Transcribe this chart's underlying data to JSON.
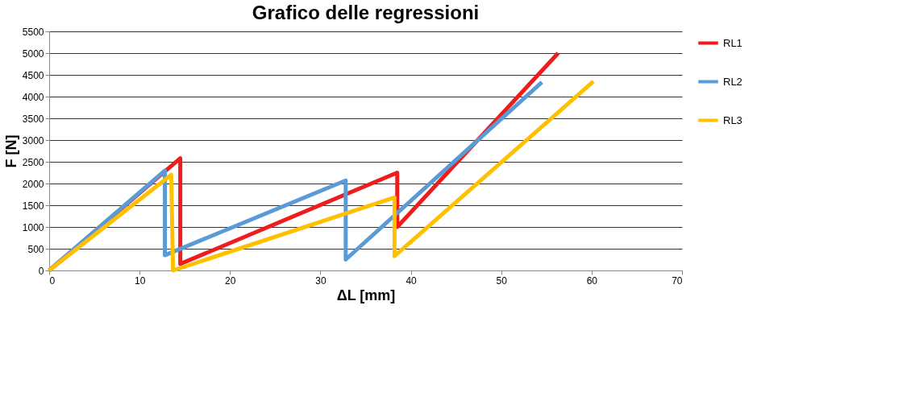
{
  "chart_data": {
    "type": "line",
    "title": "Grafico delle regressioni",
    "xlabel": "ΔL [mm]",
    "ylabel": "F [N]",
    "xlim": [
      0,
      70
    ],
    "xticks": [
      0,
      10,
      20,
      30,
      40,
      50,
      60,
      70
    ],
    "ylim": [
      0,
      5500
    ],
    "yticks": [
      0,
      500,
      1000,
      1500,
      2000,
      2500,
      3000,
      3500,
      4000,
      4500,
      5000,
      5500
    ],
    "grid": "y",
    "legend": "right",
    "marker": "none",
    "line_style": "solid",
    "series": [
      {
        "name": "RL1",
        "color": "#ee1c1c",
        "x": [
          0,
          14.5,
          14.5,
          38.5,
          38.5,
          56.3
        ],
        "values": [
          0,
          2580,
          150,
          2250,
          1000,
          5000
        ]
      },
      {
        "name": "RL2",
        "color": "#5b9bd5",
        "x": [
          0,
          12.8,
          12.8,
          32.8,
          32.8,
          54.5
        ],
        "values": [
          0,
          2300,
          350,
          2070,
          250,
          4330
        ]
      },
      {
        "name": "RL3",
        "color": "#ffc000",
        "x": [
          0,
          13.5,
          13.7,
          38.2,
          38.2,
          60.2
        ],
        "values": [
          0,
          2200,
          0,
          1680,
          330,
          4350
        ]
      }
    ]
  }
}
